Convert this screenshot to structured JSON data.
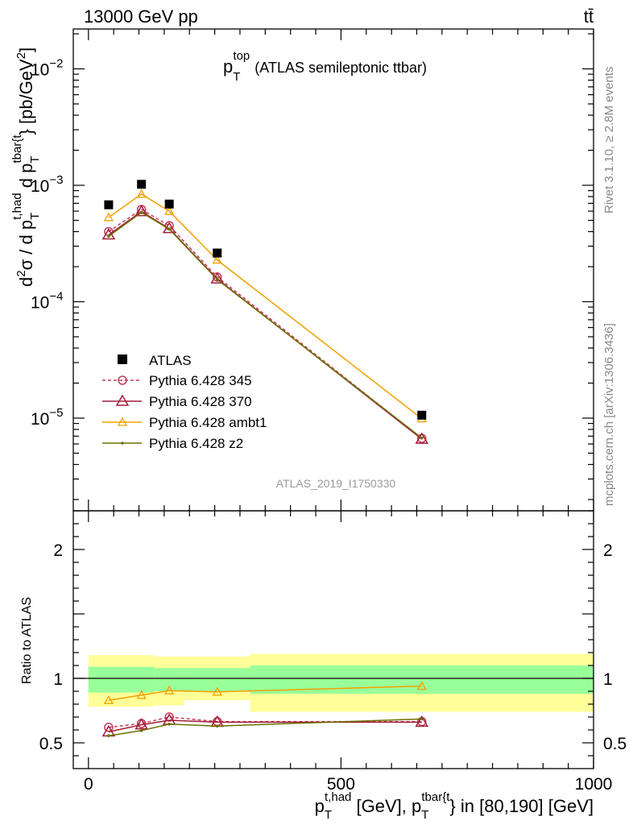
{
  "header": {
    "energy": "13000 GeV pp",
    "process": "tt̄"
  },
  "side_texts": {
    "rivet": "Rivet 3.1.10, ≥ 2.8M events",
    "site": "mcplots.cern.ch [arXiv:1306.3436]"
  },
  "chart_data": {
    "type": "line",
    "title_main": "p",
    "title_sub": "T",
    "title_sup": "top",
    "title_rest": "(ATLAS semileptonic ttbar)",
    "watermark": "ATLAS_2019_I1750330",
    "ylabel": "d²σ / d p_T^{t,had} d p_T^{tbar{t}} [pb/GeV²]",
    "ylabel_parts": {
      "a": "d",
      "a_sup": "2",
      "b": "σ  /  d p",
      "b_sub": "T",
      "b_sup": "t,had",
      "c": " d p",
      "c_sub": "T",
      "c_sup": "tbar{t",
      "d": "}  [pb/GeV",
      "d_sup": "2",
      "e": "]"
    },
    "ratio_ylabel": "Ratio to ATLAS",
    "xlabel_parts": {
      "a": "p",
      "a_sub": "T",
      "a_sup": "t,had",
      "b": " [GeV], p",
      "b_sub": "T",
      "b_sup": "tbar{t",
      "c": "} in [80,190] [GeV]"
    },
    "xlim": [
      -30,
      1000
    ],
    "ylim_log": [
      1.6e-06,
      0.022
    ],
    "ratio_ylim": [
      0.3,
      2.3
    ],
    "x_ticks": [
      {
        "value": 0,
        "label": "0"
      },
      {
        "value": 500,
        "label": "500"
      },
      {
        "value": 1000,
        "label": "1000"
      }
    ],
    "y_ticks": [
      {
        "exp": -2,
        "base": "10",
        "sup": "−2"
      },
      {
        "exp": -3,
        "base": "10",
        "sup": "−3"
      },
      {
        "exp": -4,
        "base": "10",
        "sup": "−4"
      },
      {
        "exp": -5,
        "base": "10",
        "sup": "−5"
      }
    ],
    "ratio_ticks": [
      {
        "value": 0.5,
        "label": "0.5"
      },
      {
        "value": 1,
        "label": "1"
      },
      {
        "value": 2,
        "label": "2"
      }
    ],
    "x": [
      40,
      105,
      160,
      255,
      660
    ],
    "bins": [
      [
        0,
        130
      ],
      [
        130,
        190
      ],
      [
        190,
        320
      ],
      [
        320,
        1000
      ]
    ],
    "data": {
      "name": "ATLAS",
      "values": [
        0.00068,
        0.00102,
        0.00069,
        0.000262,
        1.06e-05
      ],
      "color": "#000000"
    },
    "series": [
      {
        "name": "Pythia 6.428 345",
        "color": "#c33b5c",
        "marker": "circle",
        "dashed": true,
        "values": [
          0.0004,
          0.00062,
          0.00045,
          0.000163,
          6.7e-06
        ],
        "ratio": [
          0.62,
          0.65,
          0.7,
          0.665,
          0.665
        ]
      },
      {
        "name": "Pythia 6.428 370",
        "color": "#a21d3a",
        "marker": "triangle",
        "dashed": false,
        "values": [
          0.000375,
          0.000595,
          0.000425,
          0.000157,
          6.6e-06
        ],
        "ratio": [
          0.585,
          0.64,
          0.675,
          0.66,
          0.66
        ]
      },
      {
        "name": "Pythia 6.428 ambt1",
        "color": "#f2a000",
        "marker": "triangle-open-small",
        "dashed": false,
        "values": [
          0.00053,
          0.00084,
          0.0006,
          0.000228,
          9.9e-06
        ],
        "ratio": [
          0.83,
          0.87,
          0.905,
          0.895,
          0.94
        ]
      },
      {
        "name": "Pythia 6.428 z2",
        "color": "#6b7200",
        "marker": "dot",
        "dashed": false,
        "values": [
          0.000365,
          0.000585,
          0.00042,
          0.000155,
          6.75e-06
        ],
        "ratio": [
          0.555,
          0.595,
          0.645,
          0.63,
          0.685
        ]
      }
    ],
    "bands": {
      "yellow": [
        [
          0.78,
          1.18
        ],
        [
          0.79,
          1.17
        ],
        [
          0.83,
          1.17
        ],
        [
          0.74,
          1.19
        ]
      ],
      "green": [
        [
          0.89,
          1.09
        ],
        [
          0.9,
          1.08
        ],
        [
          0.9,
          1.08
        ],
        [
          0.88,
          1.1
        ]
      ],
      "yellow_color": "#ffff99",
      "green_color": "#99ff99"
    }
  }
}
